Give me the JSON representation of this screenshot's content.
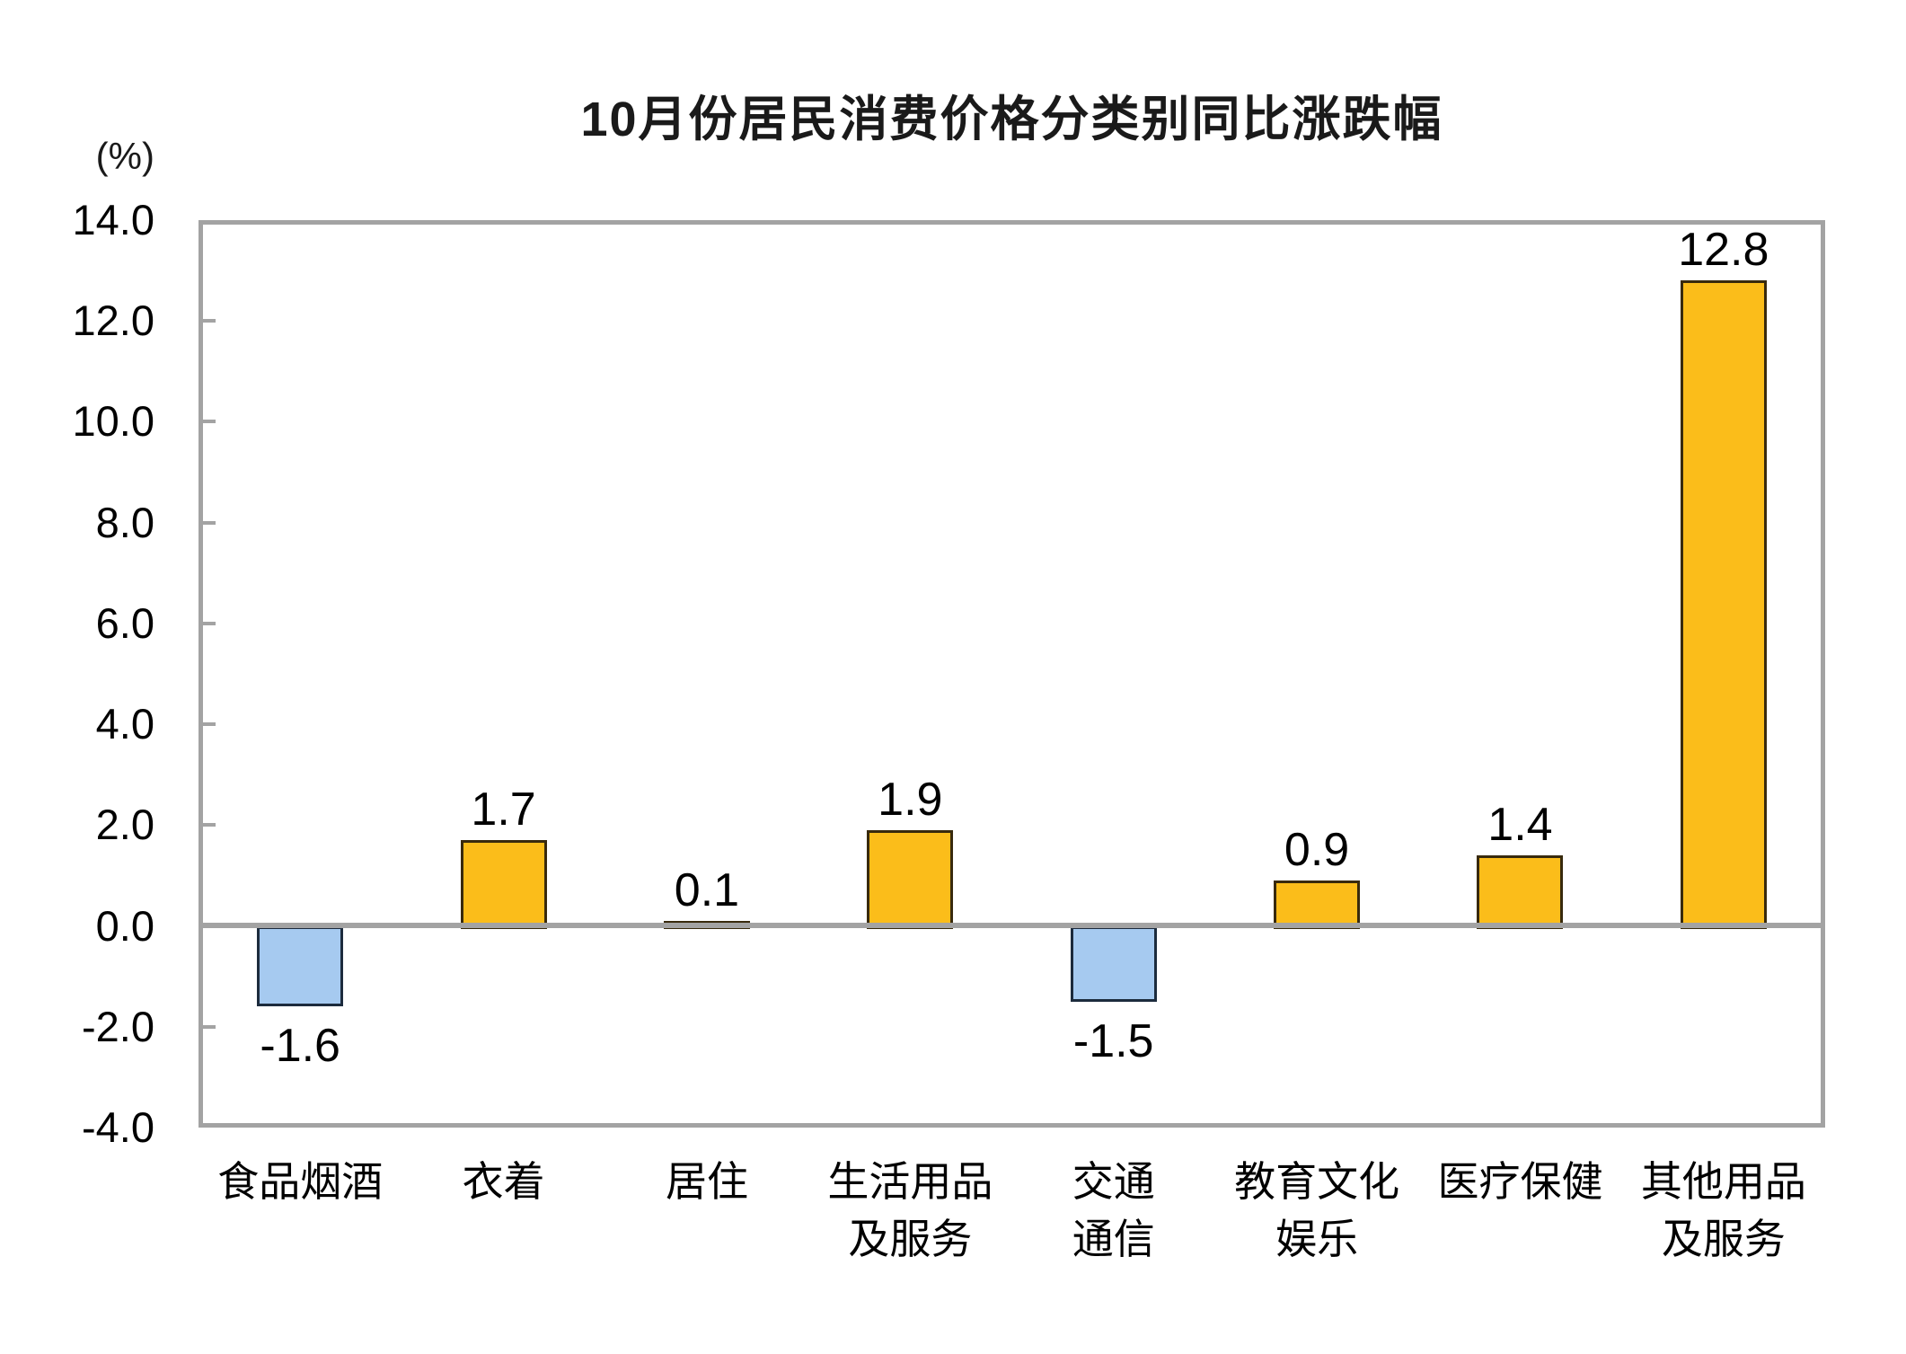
{
  "chart_data": {
    "type": "bar",
    "title": "10月份居民消费价格分类别同比涨跌幅",
    "unit_label": "(%)",
    "xlabel": "",
    "ylabel": "(%)",
    "ylim": [
      -4.0,
      14.0
    ],
    "ytick_step": 2.0,
    "ytick_labels": [
      "14.0",
      "12.0",
      "10.0",
      "8.0",
      "6.0",
      "4.0",
      "2.0",
      "0.0",
      "-2.0",
      "-4.0"
    ],
    "categories": [
      "食品烟酒",
      "衣着",
      "居住",
      "生活用品及服务",
      "交通通信",
      "教育文化娱乐",
      "医疗保健",
      "其他用品及服务"
    ],
    "category_label_lines": [
      [
        "食品烟酒"
      ],
      [
        "衣着"
      ],
      [
        "居住"
      ],
      [
        "生活用品",
        "及服务"
      ],
      [
        "交通",
        "通信"
      ],
      [
        "教育文化",
        "娱乐"
      ],
      [
        "医疗保健"
      ],
      [
        "其他用品",
        "及服务"
      ]
    ],
    "values": [
      -1.6,
      1.7,
      0.1,
      1.9,
      -1.5,
      0.9,
      1.4,
      12.8
    ],
    "data_labels": [
      "-1.6",
      "1.7",
      "0.1",
      "1.9",
      "-1.5",
      "0.9",
      "1.4",
      "12.8"
    ],
    "grid": false,
    "legend": null,
    "colors": {
      "positive_fill": "#FBBD1A",
      "positive_border": "#382A0D",
      "negative_fill": "#A6CAF0",
      "negative_border": "#1C2B3D",
      "axis": "#A3A3A3",
      "text": "#000000",
      "background": "#FFFFFF"
    }
  }
}
